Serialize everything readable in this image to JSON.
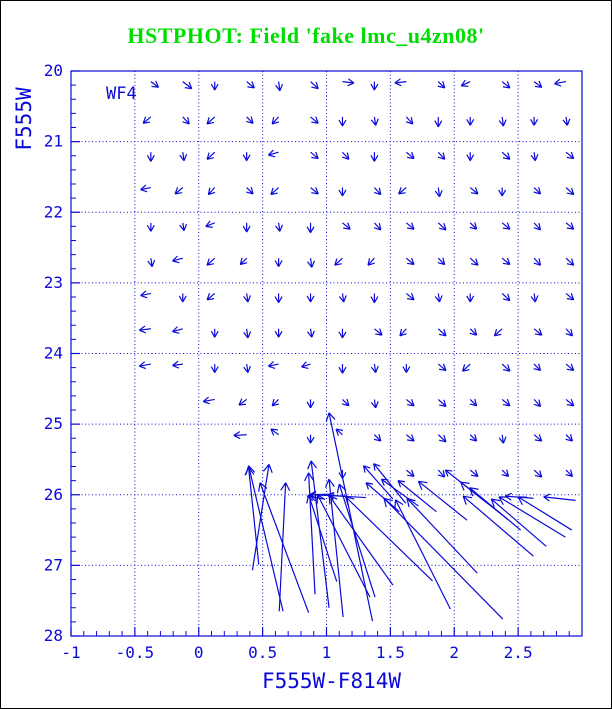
{
  "header": {
    "title": "HSTPHOT: Field 'fake lmc_u4zn08'",
    "color": "#00dd00"
  },
  "chart_data": {
    "type": "quiver",
    "title": "HSTPHOT: Field 'fake lmc_u4zn08'",
    "xlabel": "F555W-F814W",
    "ylabel": "F555W",
    "field_label": "WF4",
    "accent_color": "#0a0ad8",
    "xlim": [
      -1,
      3.0
    ],
    "ylim": [
      28,
      20
    ],
    "x_tick_values": [
      -1,
      -0.5,
      0,
      0.5,
      1,
      1.5,
      2,
      2.5
    ],
    "x_tick_labels": [
      "-1",
      "-0.5",
      "0",
      "0.5",
      "1",
      "1.5",
      "2",
      "2.5"
    ],
    "y_tick_values": [
      20,
      21,
      22,
      23,
      24,
      25,
      26,
      27,
      28
    ],
    "y_tick_labels": [
      "20",
      "21",
      "22",
      "23",
      "24",
      "25",
      "26",
      "27",
      "28"
    ],
    "x_minor_step": 0.1,
    "y_minor_step": 0.2,
    "grid": {
      "x_lines": [
        -0.5,
        0,
        0.5,
        1,
        1.5,
        2,
        2.5
      ],
      "y_lines": [
        21,
        22,
        23,
        24,
        25,
        26,
        27
      ],
      "style": "dotted"
    },
    "columns": [
      -0.375,
      -0.125,
      0.125,
      0.375,
      0.625,
      0.875,
      1.125,
      1.375,
      1.625,
      1.875,
      2.125,
      2.375,
      2.625,
      2.875
    ],
    "small_arrow_rows": [
      {
        "y": 20.15,
        "start_col": 0,
        "vectors": [
          [
            0.06,
            0.08
          ],
          [
            0.07,
            0.1
          ],
          [
            0.0,
            0.12
          ],
          [
            0.06,
            0.09
          ],
          [
            0.01,
            0.13
          ],
          [
            0.06,
            0.1
          ],
          [
            0.09,
            0.02
          ],
          [
            0.0,
            0.12
          ],
          [
            -0.09,
            0.02
          ],
          [
            0.05,
            0.09
          ],
          [
            -0.07,
            0.06
          ],
          [
            0.06,
            0.09
          ],
          [
            0.06,
            0.08
          ],
          [
            -0.09,
            0.03
          ]
        ]
      },
      {
        "y": 20.65,
        "start_col": 0,
        "vectors": [
          [
            -0.06,
            0.09
          ],
          [
            0.05,
            0.1
          ],
          [
            -0.06,
            0.1
          ],
          [
            0.05,
            0.09
          ],
          [
            -0.05,
            0.1
          ],
          [
            0.06,
            0.09
          ],
          [
            0.0,
            0.13
          ],
          [
            0.01,
            0.12
          ],
          [
            0.05,
            0.1
          ],
          [
            0.0,
            0.14
          ],
          [
            0.0,
            0.12
          ],
          [
            0.01,
            0.13
          ],
          [
            0.0,
            0.12
          ],
          [
            0.01,
            0.12
          ]
        ]
      },
      {
        "y": 21.15,
        "start_col": 0,
        "vectors": [
          [
            0.0,
            0.13
          ],
          [
            0.01,
            0.12
          ],
          [
            -0.06,
            0.1
          ],
          [
            0.0,
            0.12
          ],
          [
            -0.08,
            0.04
          ],
          [
            0.06,
            0.09
          ],
          [
            0.05,
            0.1
          ],
          [
            0.0,
            0.13
          ],
          [
            0.06,
            0.09
          ],
          [
            0.05,
            0.1
          ],
          [
            0.0,
            0.12
          ],
          [
            0.06,
            0.1
          ],
          [
            0.01,
            0.12
          ],
          [
            0.06,
            0.09
          ]
        ]
      },
      {
        "y": 21.65,
        "start_col": 0,
        "vectors": [
          [
            -0.08,
            0.03
          ],
          [
            -0.06,
            0.09
          ],
          [
            -0.05,
            0.1
          ],
          [
            0.05,
            0.09
          ],
          [
            -0.06,
            0.1
          ],
          [
            0.06,
            0.09
          ],
          [
            0.0,
            0.12
          ],
          [
            0.05,
            0.1
          ],
          [
            -0.06,
            0.09
          ],
          [
            0.01,
            0.13
          ],
          [
            0.06,
            0.09
          ],
          [
            0.0,
            0.12
          ],
          [
            0.05,
            0.09
          ],
          [
            0.06,
            0.1
          ]
        ]
      },
      {
        "y": 22.15,
        "start_col": 0,
        "vectors": [
          [
            0.0,
            0.12
          ],
          [
            0.01,
            0.11
          ],
          [
            -0.07,
            0.05
          ],
          [
            0.0,
            0.13
          ],
          [
            0.01,
            0.12
          ],
          [
            0.0,
            0.14
          ],
          [
            0.06,
            0.09
          ],
          [
            0.05,
            0.1
          ],
          [
            0.06,
            0.09
          ],
          [
            0.06,
            0.1
          ],
          [
            0.05,
            0.09
          ],
          [
            0.06,
            0.09
          ],
          [
            0.05,
            0.1
          ],
          [
            0.06,
            0.09
          ]
        ]
      },
      {
        "y": 22.65,
        "start_col": 0,
        "vectors": [
          [
            0.01,
            0.12
          ],
          [
            -0.08,
            0.04
          ],
          [
            -0.06,
            0.1
          ],
          [
            -0.05,
            0.09
          ],
          [
            0.0,
            0.12
          ],
          [
            0.01,
            0.13
          ],
          [
            -0.06,
            0.1
          ],
          [
            -0.05,
            0.1
          ],
          [
            0.06,
            0.09
          ],
          [
            0.05,
            0.09
          ],
          [
            0.06,
            0.1
          ],
          [
            0.06,
            0.09
          ],
          [
            0.05,
            0.1
          ],
          [
            0.06,
            0.1
          ]
        ]
      },
      {
        "y": 23.15,
        "start_col": 0,
        "vectors": [
          [
            -0.08,
            0.03
          ],
          [
            0.0,
            0.12
          ],
          [
            -0.06,
            0.09
          ],
          [
            0.01,
            0.12
          ],
          [
            0.0,
            0.13
          ],
          [
            0.0,
            0.12
          ],
          [
            0.01,
            0.12
          ],
          [
            0.0,
            0.13
          ],
          [
            0.06,
            0.09
          ],
          [
            0.01,
            0.12
          ],
          [
            0.0,
            0.12
          ],
          [
            0.06,
            0.1
          ],
          [
            0.01,
            0.12
          ],
          [
            0.06,
            0.09
          ]
        ]
      },
      {
        "y": 23.65,
        "start_col": 0,
        "vectors": [
          [
            -0.09,
            0.02
          ],
          [
            -0.08,
            0.04
          ],
          [
            0.0,
            0.12
          ],
          [
            0.01,
            0.13
          ],
          [
            0.0,
            0.12
          ],
          [
            0.01,
            0.12
          ],
          [
            0.0,
            0.13
          ],
          [
            0.06,
            0.09
          ],
          [
            -0.05,
            0.1
          ],
          [
            0.06,
            0.1
          ],
          [
            0.05,
            0.09
          ],
          [
            -0.06,
            0.1
          ],
          [
            0.06,
            0.09
          ],
          [
            0.05,
            0.1
          ]
        ]
      },
      {
        "y": 24.15,
        "start_col": 0,
        "vectors": [
          [
            -0.09,
            0.03
          ],
          [
            -0.08,
            0.02
          ],
          [
            0.0,
            0.12
          ],
          [
            0.01,
            0.12
          ],
          [
            -0.08,
            0.03
          ],
          [
            -0.07,
            0.04
          ],
          [
            0.0,
            0.13
          ],
          [
            0.01,
            0.12
          ],
          [
            0.0,
            0.12
          ],
          [
            0.06,
            0.09
          ],
          [
            -0.06,
            0.1
          ],
          [
            0.06,
            0.1
          ],
          [
            0.05,
            0.09
          ],
          [
            0.06,
            0.09
          ]
        ]
      },
      {
        "y": 24.65,
        "start_col": 2,
        "vectors": [
          [
            -0.09,
            0.03
          ],
          [
            -0.06,
            0.08
          ],
          [
            -0.05,
            0.09
          ],
          [
            0.0,
            0.12
          ],
          [
            0.05,
            0.09
          ],
          [
            0.01,
            0.12
          ],
          [
            0.06,
            0.09
          ],
          [
            0.06,
            0.1
          ],
          [
            0.05,
            0.09
          ],
          [
            0.06,
            0.09
          ],
          [
            0.05,
            0.1
          ],
          [
            0.06,
            0.09
          ]
        ]
      },
      {
        "y": 25.15,
        "start_col": 3,
        "vectors": [
          [
            -0.1,
            0.01
          ],
          [
            -0.06,
            -0.08
          ],
          [
            0.0,
            0.12
          ],
          [
            -0.05,
            -0.08
          ],
          [
            0.05,
            0.09
          ],
          [
            0.06,
            0.09
          ],
          [
            0.06,
            0.1
          ],
          [
            0.05,
            0.09
          ],
          [
            0.01,
            0.12
          ],
          [
            0.06,
            0.09
          ],
          [
            0.05,
            0.09
          ]
        ]
      },
      {
        "y": 25.65,
        "start_col": 6,
        "vectors": [
          [
            0.0,
            0.12
          ]
        ]
      },
      {
        "y": 25.65,
        "start_col": 8,
        "vectors": [
          [
            0.06,
            0.09
          ],
          [
            0.05,
            0.1
          ],
          [
            0.06,
            0.09
          ],
          [
            0.05,
            0.09
          ],
          [
            0.06,
            0.1
          ],
          [
            0.05,
            0.09
          ]
        ]
      }
    ],
    "large_arrows": [
      [
        0.66,
        27.65,
        -0.27,
        -2.06
      ],
      [
        0.86,
        27.67,
        -0.38,
        -1.84
      ],
      [
        0.91,
        27.41,
        -0.05,
        -1.72
      ],
      [
        1.02,
        27.6,
        -0.14,
        -2.08
      ],
      [
        1.13,
        27.73,
        -0.11,
        -1.95
      ],
      [
        1.36,
        27.79,
        -0.34,
        -2.95
      ],
      [
        1.38,
        27.45,
        -0.28,
        -1.6
      ],
      [
        0.42,
        27.07,
        0.13,
        -1.5
      ],
      [
        0.63,
        27.65,
        0.05,
        -1.82
      ],
      [
        0.47,
        26.99,
        -0.08,
        -1.38
      ],
      [
        1.08,
        27.23,
        -0.22,
        -1.23
      ],
      [
        1.34,
        27.45,
        -0.41,
        -1.45
      ],
      [
        1.52,
        27.28,
        -0.5,
        -1.27
      ],
      [
        1.83,
        27.22,
        -0.68,
        -1.19
      ],
      [
        2.38,
        27.76,
        -0.93,
        -1.71
      ],
      [
        2.62,
        26.87,
        -0.55,
        -0.85
      ],
      [
        2.87,
        26.6,
        -0.52,
        -0.57
      ],
      [
        2.18,
        27.11,
        -0.55,
        -1.06
      ],
      [
        1.97,
        27.62,
        -0.43,
        -1.55
      ],
      [
        1.15,
        26.02,
        -0.28,
        -0.02
      ],
      [
        1.06,
        25.99,
        -0.19,
        0.01
      ],
      [
        1.31,
        26.04,
        -0.3,
        -0.03
      ],
      [
        0.98,
        26.06,
        -0.13,
        -0.04
      ],
      [
        2.62,
        26.05,
        -0.22,
        -0.03
      ],
      [
        2.95,
        26.08,
        -0.25,
        -0.05
      ],
      [
        1.52,
        26.06,
        -0.23,
        -0.47
      ],
      [
        1.62,
        26.12,
        -0.25,
        -0.56
      ],
      [
        1.57,
        26.24,
        -0.26,
        -0.41
      ],
      [
        1.72,
        26.16,
        -0.29,
        -0.38
      ],
      [
        1.86,
        26.24,
        -0.3,
        -0.44
      ],
      [
        2.1,
        26.36,
        -0.38,
        -0.55
      ],
      [
        2.26,
        26.12,
        -0.33,
        -0.47
      ],
      [
        2.42,
        26.35,
        -0.37,
        -0.53
      ],
      [
        2.52,
        26.5,
        -0.4,
        -0.6
      ],
      [
        2.92,
        26.5,
        -0.42,
        -0.47
      ],
      [
        2.72,
        26.73,
        -0.43,
        -0.67
      ]
    ]
  }
}
